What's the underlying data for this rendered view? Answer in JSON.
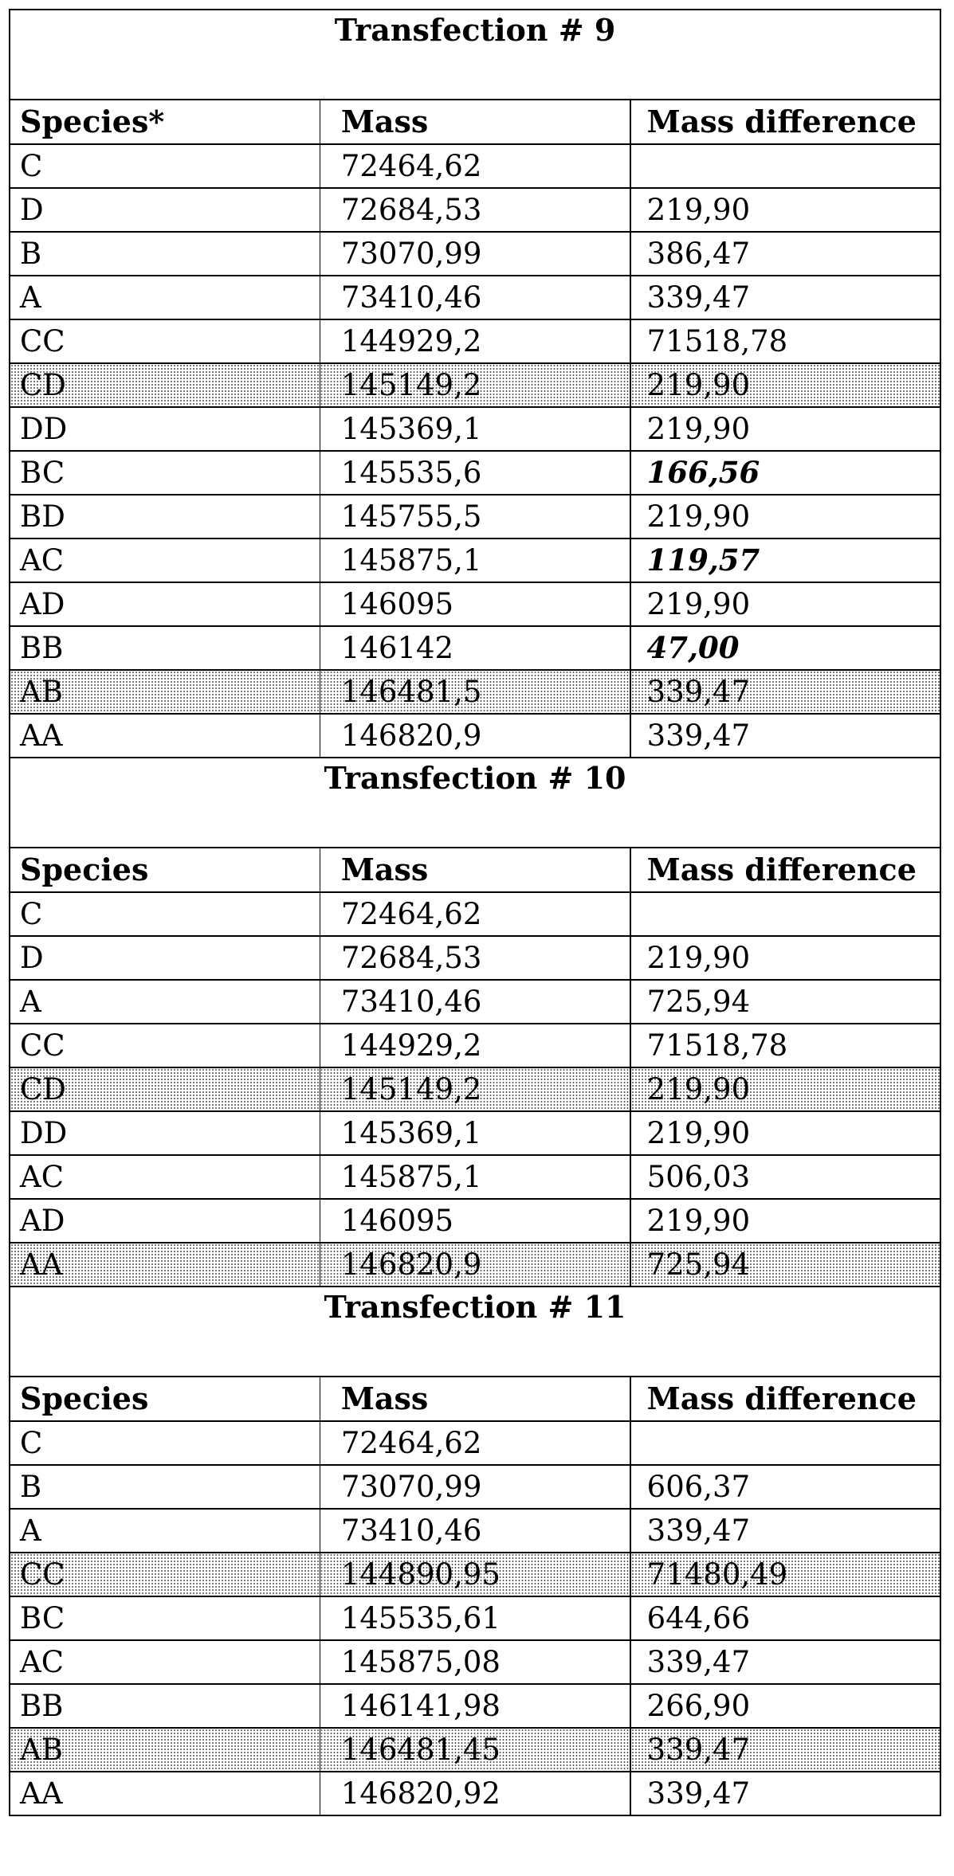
{
  "sections": [
    {
      "title": "Transfection # 9",
      "headers": [
        "Species*",
        "Mass",
        "Mass difference"
      ],
      "rows": [
        {
          "species": "C",
          "mass": "72464,62",
          "diff": "",
          "shaded": false,
          "italic": false
        },
        {
          "species": "D",
          "mass": "72684,53",
          "diff": "219,90",
          "shaded": false,
          "italic": false
        },
        {
          "species": "B",
          "mass": "73070,99",
          "diff": "386,47",
          "shaded": false,
          "italic": false
        },
        {
          "species": "A",
          "mass": "73410,46",
          "diff": "339,47",
          "shaded": false,
          "italic": false
        },
        {
          "species": "CC",
          "mass": "144929,2",
          "diff": "71518,78",
          "shaded": false,
          "italic": false
        },
        {
          "species": "CD",
          "mass": "145149,2",
          "diff": "219,90",
          "shaded": true,
          "italic": false
        },
        {
          "species": "DD",
          "mass": "145369,1",
          "diff": "219,90",
          "shaded": false,
          "italic": false
        },
        {
          "species": "BC",
          "mass": "145535,6",
          "diff": "166,56",
          "shaded": false,
          "italic": true
        },
        {
          "species": "BD",
          "mass": "145755,5",
          "diff": "219,90",
          "shaded": false,
          "italic": false
        },
        {
          "species": "AC",
          "mass": "145875,1",
          "diff": "119,57",
          "shaded": false,
          "italic": true
        },
        {
          "species": "AD",
          "mass": "146095",
          "diff": "219,90",
          "shaded": false,
          "italic": false
        },
        {
          "species": "BB",
          "mass": "146142",
          "diff": "47,00",
          "shaded": false,
          "italic": true
        },
        {
          "species": "AB",
          "mass": "146481,5",
          "diff": "339,47",
          "shaded": true,
          "italic": false
        },
        {
          "species": "AA",
          "mass": "146820,9",
          "diff": "339,47",
          "shaded": false,
          "italic": false
        }
      ]
    },
    {
      "title": "Transfection # 10",
      "headers": [
        "Species",
        "Mass",
        "Mass difference"
      ],
      "rows": [
        {
          "species": "C",
          "mass": "72464,62",
          "diff": "",
          "shaded": false,
          "italic": false
        },
        {
          "species": "D",
          "mass": "72684,53",
          "diff": "219,90",
          "shaded": false,
          "italic": false
        },
        {
          "species": "A",
          "mass": "73410,46",
          "diff": "725,94",
          "shaded": false,
          "italic": false
        },
        {
          "species": "CC",
          "mass": "144929,2",
          "diff": "71518,78",
          "shaded": false,
          "italic": false
        },
        {
          "species": "CD",
          "mass": "145149,2",
          "diff": "219,90",
          "shaded": true,
          "italic": false
        },
        {
          "species": "DD",
          "mass": "145369,1",
          "diff": "219,90",
          "shaded": false,
          "italic": false
        },
        {
          "species": "AC",
          "mass": "145875,1",
          "diff": "506,03",
          "shaded": false,
          "italic": false
        },
        {
          "species": "AD",
          "mass": "146095",
          "diff": "219,90",
          "shaded": false,
          "italic": false
        },
        {
          "species": "AA",
          "mass": "146820,9",
          "diff": "725,94",
          "shaded": true,
          "italic": false
        }
      ]
    },
    {
      "title": "Transfection # 11",
      "headers": [
        "Species",
        "Mass",
        "Mass difference"
      ],
      "rows": [
        {
          "species": "C",
          "mass": "72464,62",
          "diff": "",
          "shaded": false,
          "italic": false
        },
        {
          "species": "B",
          "mass": "73070,99",
          "diff": "606,37",
          "shaded": false,
          "italic": false
        },
        {
          "species": "A",
          "mass": "73410,46",
          "diff": "339,47",
          "shaded": false,
          "italic": false
        },
        {
          "species": "CC",
          "mass": "144890,95",
          "diff": "71480,49",
          "shaded": true,
          "italic": false
        },
        {
          "species": "BC",
          "mass": "145535,61",
          "diff": "644,66",
          "shaded": false,
          "italic": false
        },
        {
          "species": "AC",
          "mass": "145875,08",
          "diff": "339,47",
          "shaded": false,
          "italic": false
        },
        {
          "species": "BB",
          "mass": "146141,98",
          "diff": "266,90",
          "shaded": false,
          "italic": false
        },
        {
          "species": "AB",
          "mass": "146481,45",
          "diff": "339,47",
          "shaded": true,
          "italic": false
        },
        {
          "species": "AA",
          "mass": "146820,92",
          "diff": "339,47",
          "shaded": false,
          "italic": false
        }
      ]
    }
  ]
}
